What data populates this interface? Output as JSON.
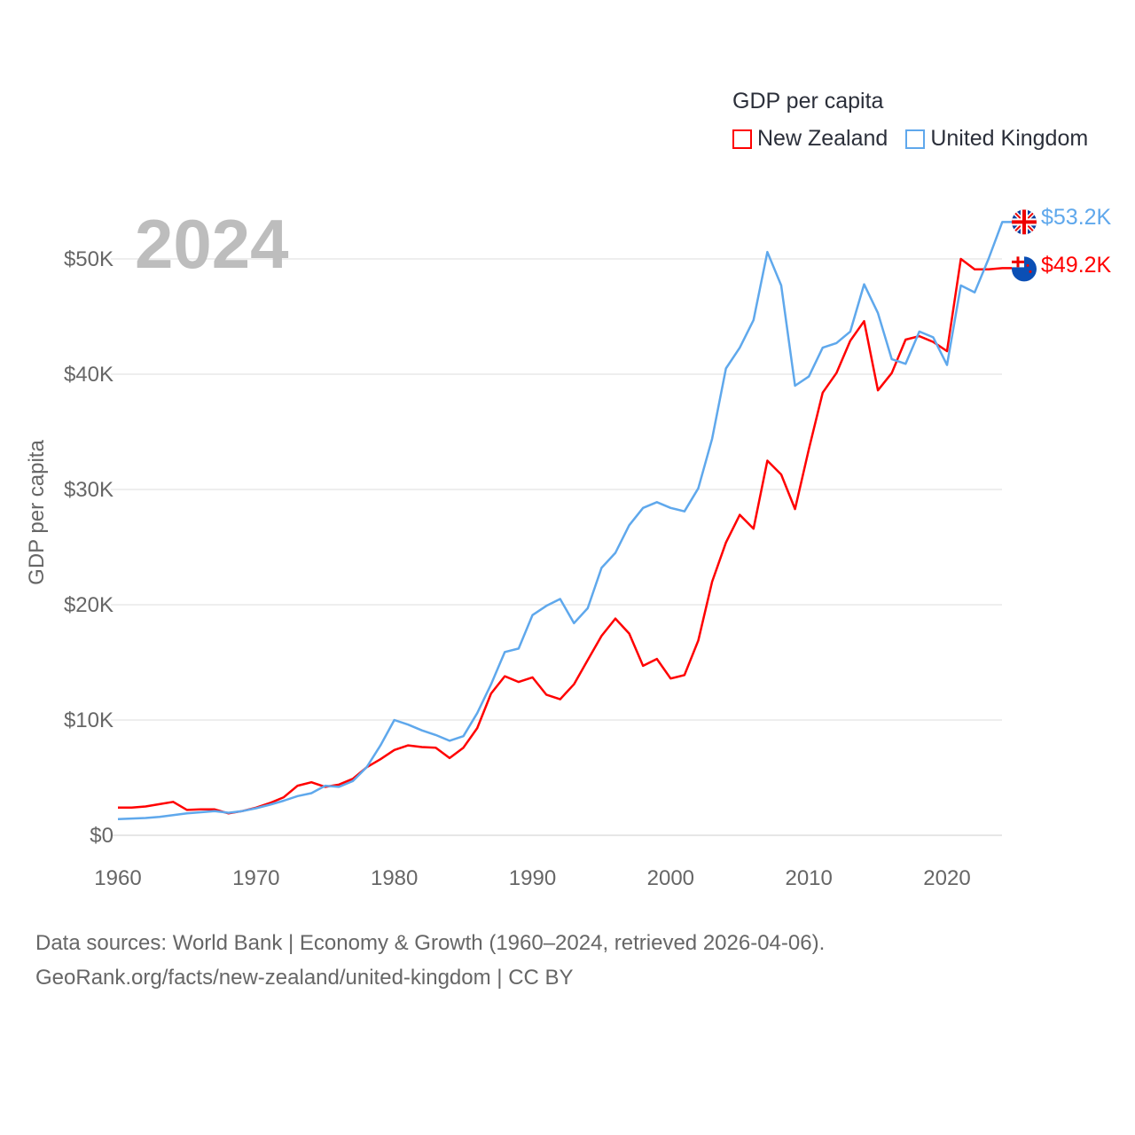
{
  "chart_data": {
    "type": "line",
    "title": "GDP per capita",
    "ylabel": "GDP per capita",
    "xlabel": "",
    "current_year": "2024",
    "xlim": [
      1960,
      2024
    ],
    "ylim": [
      0,
      53.2
    ],
    "x_ticks": [
      1960,
      1970,
      1980,
      1990,
      2000,
      2010,
      2020
    ],
    "y_ticks": [
      {
        "v": 0,
        "label": "$0"
      },
      {
        "v": 10,
        "label": "$10K"
      },
      {
        "v": 20,
        "label": "$20K"
      },
      {
        "v": 30,
        "label": "$30K"
      },
      {
        "v": 40,
        "label": "$40K"
      },
      {
        "v": 50,
        "label": "$50K"
      }
    ],
    "grid": true,
    "legend_placement": "top-right",
    "x": [
      1960,
      1961,
      1962,
      1963,
      1964,
      1965,
      1966,
      1967,
      1968,
      1969,
      1970,
      1971,
      1972,
      1973,
      1974,
      1975,
      1976,
      1977,
      1978,
      1979,
      1980,
      1981,
      1982,
      1983,
      1984,
      1985,
      1986,
      1987,
      1988,
      1989,
      1990,
      1991,
      1992,
      1993,
      1994,
      1995,
      1996,
      1997,
      1998,
      1999,
      2000,
      2001,
      2002,
      2003,
      2004,
      2005,
      2006,
      2007,
      2008,
      2009,
      2010,
      2011,
      2012,
      2013,
      2014,
      2015,
      2016,
      2017,
      2018,
      2019,
      2020,
      2021,
      2022,
      2023,
      2024
    ],
    "series": [
      {
        "name": "New Zealand",
        "color": "#ff0000",
        "end_label": "$49.2K",
        "flag": "new-zealand-flag",
        "values": [
          2.4,
          2.4,
          2.5,
          2.7,
          2.9,
          2.2,
          2.25,
          2.25,
          1.9,
          2.1,
          2.4,
          2.8,
          3.3,
          4.3,
          4.6,
          4.2,
          4.4,
          4.9,
          5.9,
          6.6,
          7.4,
          7.8,
          7.65,
          7.6,
          6.7,
          7.6,
          9.3,
          12.3,
          13.8,
          13.3,
          13.7,
          12.2,
          11.8,
          13.1,
          15.2,
          17.3,
          18.8,
          17.5,
          14.7,
          15.3,
          13.6,
          13.9,
          16.9,
          22.0,
          25.4,
          27.8,
          26.6,
          32.5,
          31.3,
          28.3,
          33.5,
          38.4,
          40.1,
          42.9,
          44.6,
          38.6,
          40.1,
          43.0,
          43.3,
          42.8,
          42.0,
          50.0,
          49.1,
          49.1,
          49.2
        ]
      },
      {
        "name": "United Kingdom",
        "color": "#5fa8ec",
        "end_label": "$53.2K",
        "flag": "united-kingdom-flag",
        "values": [
          1.4,
          1.45,
          1.5,
          1.6,
          1.75,
          1.9,
          2.0,
          2.1,
          1.95,
          2.1,
          2.35,
          2.65,
          3.0,
          3.4,
          3.65,
          4.3,
          4.2,
          4.7,
          5.9,
          7.8,
          10.0,
          9.6,
          9.1,
          8.7,
          8.2,
          8.6,
          10.6,
          13.1,
          15.9,
          16.2,
          19.1,
          19.9,
          20.5,
          18.4,
          19.7,
          23.2,
          24.5,
          26.9,
          28.4,
          28.9,
          28.4,
          28.1,
          30.1,
          34.4,
          40.5,
          42.3,
          44.7,
          50.6,
          47.7,
          39.0,
          39.8,
          42.3,
          42.7,
          43.7,
          47.8,
          45.3,
          41.3,
          40.9,
          43.7,
          43.2,
          40.8,
          47.7,
          47.1,
          50.0,
          53.2
        ]
      }
    ]
  },
  "footer": {
    "line1": "Data sources: World Bank | Economy & Growth (1960–2024, retrieved 2026-04-06).",
    "line2": "GeoRank.org/facts/new-zealand/united-kingdom | CC BY"
  }
}
